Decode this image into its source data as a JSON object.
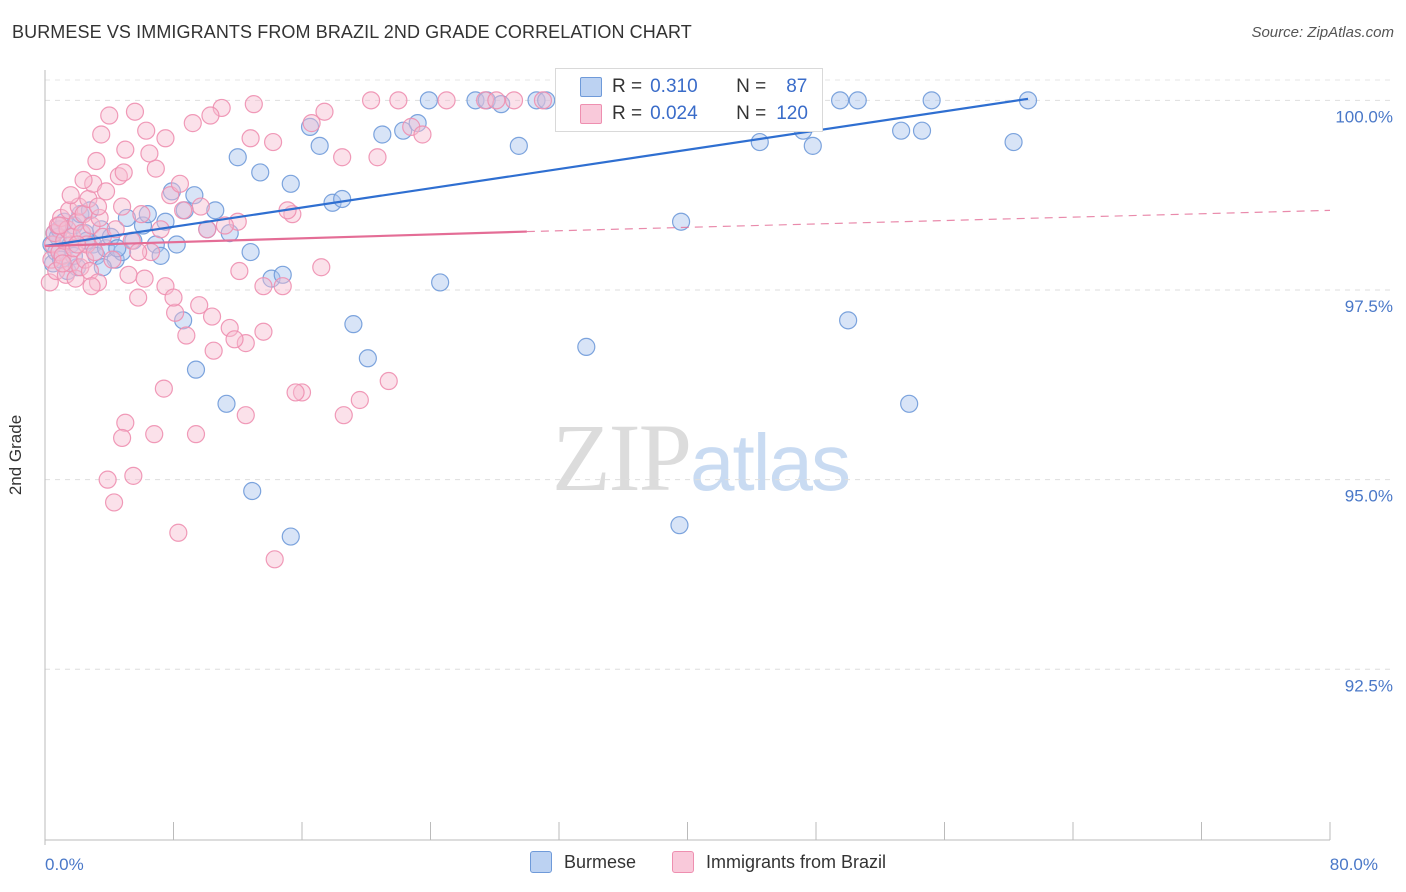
{
  "title": "BURMESE VS IMMIGRANTS FROM BRAZIL 2ND GRADE CORRELATION CHART",
  "source": "Source: ZipAtlas.com",
  "watermark": {
    "zip": "ZIP",
    "atlas": "atlas"
  },
  "chart_data": {
    "type": "scatter",
    "ylabel": "2nd Grade",
    "xlabel": "",
    "xlim": [
      0,
      80
    ],
    "ylim": [
      90.25,
      100.4
    ],
    "x_tick_labels": [
      {
        "value": 0,
        "label": "0.0%"
      },
      {
        "value": 80,
        "label": "80.0%"
      }
    ],
    "x_minor_ticks": [
      0,
      8,
      16,
      24,
      32,
      40,
      48,
      56,
      64,
      72,
      80
    ],
    "y_ticks": [
      {
        "value": 100.0,
        "label": "100.0%"
      },
      {
        "value": 97.5,
        "label": "97.5%"
      },
      {
        "value": 95.0,
        "label": "95.0%"
      },
      {
        "value": 92.5,
        "label": "92.5%"
      }
    ],
    "grid": "horizontal dashed",
    "legend": {
      "position": "top-center",
      "entries": [
        {
          "name": "Burmese",
          "r_label": "R =",
          "r": "0.310",
          "n_label": "N =",
          "n": "87",
          "color": "#a8c4ee",
          "stroke": "#6f9ad9"
        },
        {
          "name": "Immigrants from Brazil",
          "r_label": "R =",
          "r": "0.024",
          "n_label": "N =",
          "n": "120",
          "color": "#f7bcd0",
          "stroke": "#ee8fb0"
        }
      ]
    },
    "series": [
      {
        "name": "Burmese",
        "color": "#a8c4ee",
        "stroke": "#6f9ad9",
        "trend": {
          "x": [
            0,
            61.2
          ],
          "y": [
            98.08,
            100.02
          ],
          "color": "#2f6fd1"
        },
        "points": [
          [
            0.4,
            98.1
          ],
          [
            0.5,
            97.85
          ],
          [
            0.6,
            98.25
          ],
          [
            0.7,
            98.0
          ],
          [
            0.8,
            98.2
          ],
          [
            0.9,
            98.3
          ],
          [
            1.0,
            97.9
          ],
          [
            1.2,
            98.4
          ],
          [
            1.4,
            97.75
          ],
          [
            1.6,
            98.1
          ],
          [
            1.8,
            98.35
          ],
          [
            2.0,
            97.8
          ],
          [
            2.2,
            98.5
          ],
          [
            2.5,
            98.25
          ],
          [
            2.8,
            98.55
          ],
          [
            3.0,
            98.1
          ],
          [
            3.2,
            97.95
          ],
          [
            3.5,
            98.3
          ],
          [
            3.8,
            98.05
          ],
          [
            4.1,
            98.2
          ],
          [
            4.4,
            97.9
          ],
          [
            4.8,
            98.0
          ],
          [
            5.1,
            98.45
          ],
          [
            5.5,
            98.15
          ],
          [
            6.1,
            98.35
          ],
          [
            6.4,
            98.5
          ],
          [
            6.9,
            98.1
          ],
          [
            7.5,
            98.4
          ],
          [
            7.9,
            98.8
          ],
          [
            8.2,
            98.1
          ],
          [
            8.7,
            98.55
          ],
          [
            9.3,
            98.75
          ],
          [
            10.1,
            98.3
          ],
          [
            10.6,
            98.55
          ],
          [
            11.5,
            98.25
          ],
          [
            12.0,
            99.25
          ],
          [
            12.8,
            98.0
          ],
          [
            13.4,
            99.05
          ],
          [
            14.1,
            97.65
          ],
          [
            14.8,
            97.7
          ],
          [
            15.3,
            98.9
          ],
          [
            16.5,
            99.65
          ],
          [
            17.1,
            99.4
          ],
          [
            17.9,
            98.65
          ],
          [
            18.5,
            98.7
          ],
          [
            19.2,
            97.05
          ],
          [
            20.1,
            96.6
          ],
          [
            21.0,
            99.55
          ],
          [
            22.3,
            99.6
          ],
          [
            23.2,
            99.7
          ],
          [
            23.9,
            100.0
          ],
          [
            26.8,
            100.0
          ],
          [
            27.5,
            100.0
          ],
          [
            28.4,
            99.95
          ],
          [
            29.5,
            99.4
          ],
          [
            30.6,
            100.0
          ],
          [
            31.2,
            100.0
          ],
          [
            34.2,
            100.0
          ],
          [
            36.1,
            100.0
          ],
          [
            37.3,
            100.0
          ],
          [
            39.6,
            98.4
          ],
          [
            40.8,
            100.0
          ],
          [
            42.0,
            100.0
          ],
          [
            44.5,
            99.45
          ],
          [
            47.2,
            99.6
          ],
          [
            47.8,
            99.4
          ],
          [
            49.5,
            100.0
          ],
          [
            50.6,
            100.0
          ],
          [
            53.3,
            99.6
          ],
          [
            54.6,
            99.6
          ],
          [
            55.2,
            100.0
          ],
          [
            60.3,
            99.45
          ],
          [
            61.2,
            100.0
          ],
          [
            1.8,
            97.95
          ],
          [
            2.6,
            98.15
          ],
          [
            3.6,
            97.8
          ],
          [
            4.5,
            98.05
          ],
          [
            7.2,
            97.95
          ],
          [
            8.6,
            97.1
          ],
          [
            9.4,
            96.45
          ],
          [
            11.3,
            96.0
          ],
          [
            12.9,
            94.85
          ],
          [
            15.3,
            94.25
          ],
          [
            24.6,
            97.6
          ],
          [
            33.7,
            96.75
          ],
          [
            39.5,
            94.4
          ],
          [
            50.0,
            97.1
          ],
          [
            53.8,
            96.0
          ]
        ]
      },
      {
        "name": "Immigrants from Brazil",
        "color": "#f7bcd0",
        "stroke": "#ee8fb0",
        "trend": {
          "x": [
            0,
            30.0
          ],
          "y": [
            98.08,
            98.27
          ],
          "dash_to_x": 80,
          "dash_to_y": 98.55,
          "color": "#e46d96"
        },
        "points": [
          [
            0.3,
            97.6
          ],
          [
            0.4,
            97.9
          ],
          [
            0.5,
            98.1
          ],
          [
            0.6,
            98.25
          ],
          [
            0.7,
            97.75
          ],
          [
            0.8,
            98.35
          ],
          [
            0.9,
            98.0
          ],
          [
            1.0,
            98.45
          ],
          [
            1.1,
            97.95
          ],
          [
            1.2,
            98.15
          ],
          [
            1.3,
            97.7
          ],
          [
            1.4,
            98.3
          ],
          [
            1.5,
            98.55
          ],
          [
            1.6,
            97.85
          ],
          [
            1.7,
            98.2
          ],
          [
            1.8,
            98.05
          ],
          [
            1.9,
            97.65
          ],
          [
            2.0,
            98.4
          ],
          [
            2.1,
            98.6
          ],
          [
            2.2,
            97.8
          ],
          [
            2.3,
            98.25
          ],
          [
            2.4,
            98.5
          ],
          [
            2.5,
            97.9
          ],
          [
            2.6,
            98.1
          ],
          [
            2.7,
            98.7
          ],
          [
            2.8,
            97.75
          ],
          [
            2.9,
            98.35
          ],
          [
            3.0,
            98.9
          ],
          [
            3.1,
            98.0
          ],
          [
            3.2,
            99.2
          ],
          [
            3.3,
            97.6
          ],
          [
            3.4,
            98.45
          ],
          [
            3.5,
            99.55
          ],
          [
            3.6,
            98.2
          ],
          [
            3.8,
            98.8
          ],
          [
            4.0,
            99.8
          ],
          [
            4.2,
            97.9
          ],
          [
            4.4,
            98.3
          ],
          [
            4.6,
            99.0
          ],
          [
            4.8,
            98.6
          ],
          [
            5.0,
            99.35
          ],
          [
            5.2,
            97.7
          ],
          [
            5.4,
            98.15
          ],
          [
            5.6,
            99.85
          ],
          [
            5.8,
            97.4
          ],
          [
            6.0,
            98.5
          ],
          [
            6.3,
            99.6
          ],
          [
            6.6,
            98.0
          ],
          [
            6.9,
            99.1
          ],
          [
            7.2,
            98.3
          ],
          [
            7.5,
            99.5
          ],
          [
            7.8,
            98.75
          ],
          [
            8.1,
            97.2
          ],
          [
            8.4,
            98.9
          ],
          [
            8.8,
            96.9
          ],
          [
            9.2,
            99.7
          ],
          [
            9.6,
            97.3
          ],
          [
            10.1,
            98.3
          ],
          [
            10.5,
            96.7
          ],
          [
            11.0,
            99.9
          ],
          [
            11.5,
            97.0
          ],
          [
            12.0,
            98.4
          ],
          [
            12.5,
            96.8
          ],
          [
            13.0,
            99.95
          ],
          [
            13.6,
            96.95
          ],
          [
            14.2,
            99.45
          ],
          [
            14.8,
            97.55
          ],
          [
            15.4,
            98.5
          ],
          [
            16.0,
            96.15
          ],
          [
            16.6,
            99.7
          ],
          [
            17.2,
            97.8
          ],
          [
            18.5,
            99.25
          ],
          [
            19.6,
            96.05
          ],
          [
            20.3,
            100.0
          ],
          [
            21.4,
            96.3
          ],
          [
            22.0,
            100.0
          ],
          [
            22.8,
            99.65
          ],
          [
            25.0,
            100.0
          ],
          [
            27.4,
            100.0
          ],
          [
            29.2,
            100.0
          ],
          [
            31.0,
            100.0
          ],
          [
            18.6,
            95.85
          ],
          [
            3.9,
            95.0
          ],
          [
            4.3,
            94.7
          ],
          [
            5.0,
            95.75
          ],
          [
            5.5,
            95.05
          ],
          [
            6.8,
            95.6
          ],
          [
            8.3,
            94.3
          ],
          [
            9.4,
            95.6
          ],
          [
            11.8,
            96.85
          ],
          [
            12.5,
            95.85
          ],
          [
            14.3,
            93.95
          ],
          [
            15.6,
            96.15
          ],
          [
            4.8,
            95.55
          ],
          [
            7.4,
            96.2
          ],
          [
            10.4,
            97.15
          ],
          [
            12.1,
            97.75
          ],
          [
            13.6,
            97.55
          ],
          [
            2.9,
            97.55
          ],
          [
            1.1,
            97.85
          ],
          [
            0.9,
            98.35
          ],
          [
            2.0,
            98.1
          ],
          [
            3.3,
            98.6
          ],
          [
            5.8,
            98.0
          ],
          [
            6.2,
            97.65
          ],
          [
            7.5,
            97.55
          ],
          [
            8.0,
            97.4
          ],
          [
            9.7,
            98.6
          ],
          [
            11.2,
            98.35
          ],
          [
            1.6,
            98.75
          ],
          [
            2.4,
            98.95
          ],
          [
            4.9,
            99.05
          ],
          [
            6.5,
            99.3
          ],
          [
            8.6,
            98.55
          ],
          [
            10.3,
            99.8
          ],
          [
            12.8,
            99.5
          ],
          [
            15.1,
            98.55
          ],
          [
            17.4,
            99.85
          ],
          [
            20.7,
            99.25
          ],
          [
            23.5,
            99.55
          ],
          [
            28.1,
            100.0
          ]
        ]
      }
    ]
  }
}
